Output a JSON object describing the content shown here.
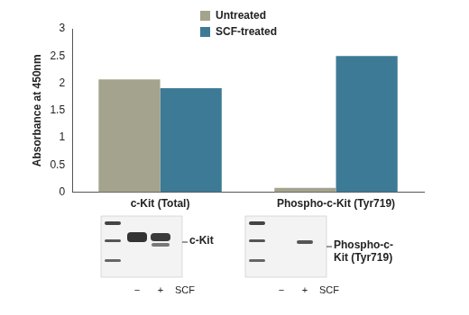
{
  "chart_data": {
    "type": "bar",
    "y_label": "Absorbance at 450nm",
    "categories": [
      "c-Kit (Total)",
      "Phospho-c-Kit (Tyr719)"
    ],
    "series": [
      {
        "name": "Untreated",
        "color": "#a3a38e",
        "values": [
          2.07,
          0.08
        ]
      },
      {
        "name": "SCF-treated",
        "color": "#3d7a95",
        "values": [
          1.91,
          2.5
        ]
      }
    ],
    "ylim": [
      0,
      3
    ],
    "yticks": [
      0,
      0.5,
      1,
      1.5,
      2,
      2.5,
      3
    ],
    "grid": false,
    "legend": "top"
  },
  "blots": [
    {
      "label": "c-Kit",
      "lanes": [
        "−",
        "+"
      ],
      "treatment": "SCF"
    },
    {
      "label": "Phospho-c-Kit (Tyr719)",
      "lanes": [
        "−",
        "+"
      ],
      "treatment": "SCF"
    }
  ]
}
